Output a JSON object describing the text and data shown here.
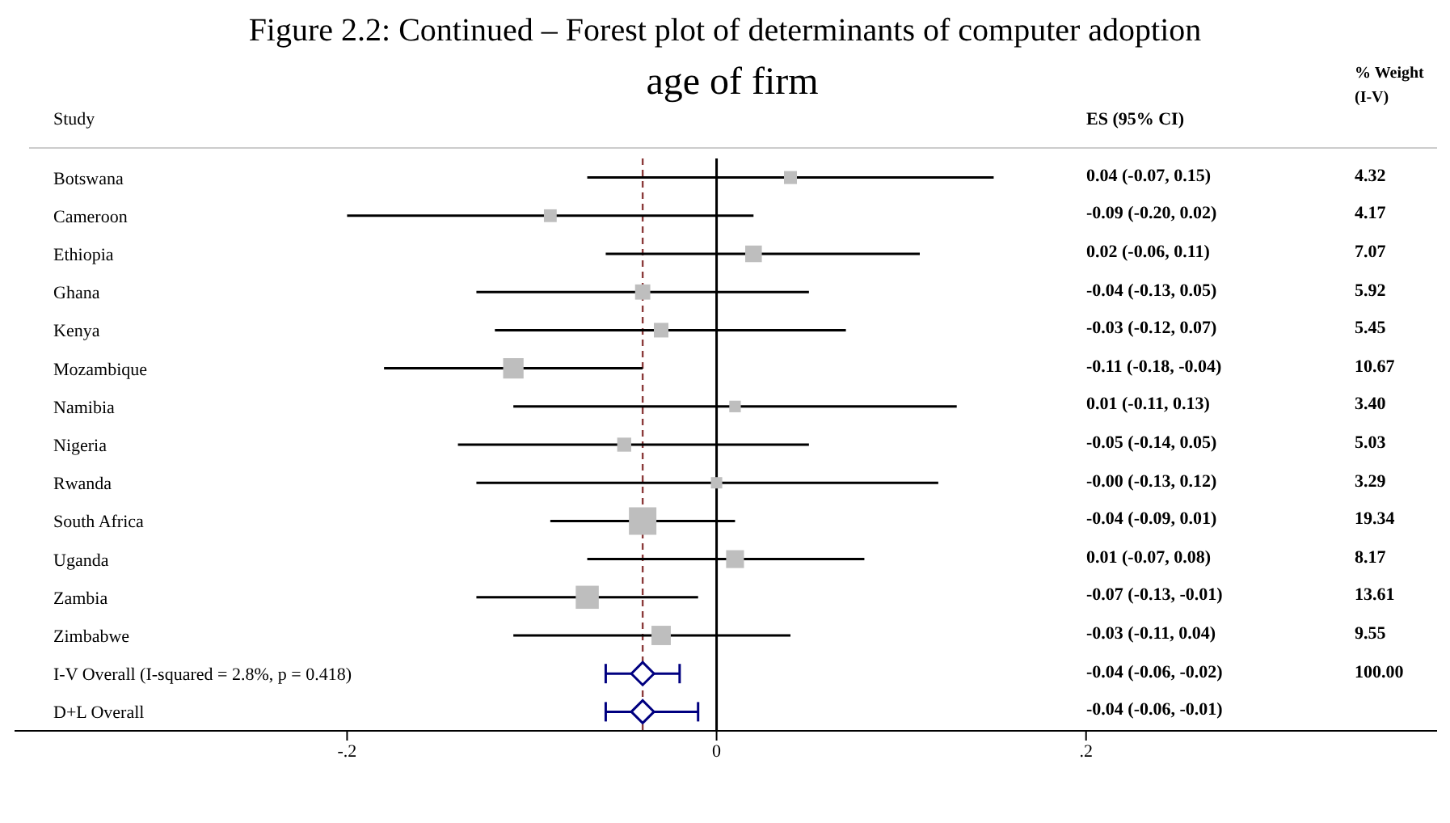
{
  "chart_data": {
    "type": "bubble",
    "title": "Figure 2.2: Continued – Forest plot of determinants of computer adoption",
    "subtitle": "age of firm",
    "ylabel": "Study",
    "orientation": "horizontal",
    "categories": [
      "Botswana",
      "Cameroon",
      "Ethiopia",
      "Ghana",
      "Kenya",
      "Mozambique",
      "Namibia",
      "Nigeria",
      "Rwanda",
      "South Africa",
      "Uganda",
      "Zambia",
      "Zimbabwe",
      "I-V Overall  (I-squared = 2.8%, p = 0.418)",
      "D+L Overall"
    ],
    "series": [
      {
        "type": "bubble",
        "marker": "square",
        "color": "#bebebe",
        "values": [
          0.04,
          -0.09,
          0.02,
          -0.04,
          -0.03,
          -0.11,
          0.01,
          -0.05,
          -0.0,
          -0.04,
          0.01,
          -0.07,
          -0.03,
          null,
          null
        ],
        "errors": [
          [
            -0.07,
            0.15
          ],
          [
            -0.2,
            0.02
          ],
          [
            -0.06,
            0.11
          ],
          [
            -0.13,
            0.05
          ],
          [
            -0.12,
            0.07
          ],
          [
            -0.18,
            -0.04
          ],
          [
            -0.11,
            0.13
          ],
          [
            -0.14,
            0.05
          ],
          [
            -0.13,
            0.12
          ],
          [
            -0.09,
            0.01
          ],
          [
            -0.07,
            0.08
          ],
          [
            -0.13,
            -0.01
          ],
          [
            -0.11,
            0.04
          ],
          null,
          null
        ],
        "sizes": [
          0.223,
          0.216,
          0.366,
          0.306,
          0.282,
          0.552,
          0.176,
          0.26,
          0.17,
          1,
          0.422,
          0.704,
          0.494,
          null,
          null
        ]
      },
      {
        "type": "scatter",
        "marker": "diamond",
        "color": "#000080",
        "values": [
          null,
          null,
          null,
          null,
          null,
          null,
          null,
          null,
          null,
          null,
          null,
          null,
          null,
          -0.04,
          -0.04
        ],
        "errors": [
          null,
          null,
          null,
          null,
          null,
          null,
          null,
          null,
          null,
          null,
          null,
          null,
          null,
          [
            -0.06,
            -0.02
          ],
          [
            -0.06,
            -0.01
          ]
        ]
      }
    ],
    "xlim": [
      -0.38,
      0.39
    ],
    "xticks": [
      {
        "value": -0.2,
        "label": "-.2"
      },
      {
        "value": 0,
        "label": "0"
      },
      {
        "value": 0.2,
        "label": ".2"
      }
    ],
    "ref_lines": [
      {
        "axis": "x",
        "value": 0,
        "color": "#000000",
        "line_style": "solid"
      },
      {
        "axis": "x",
        "value": -0.04,
        "color": "#8b3a3a",
        "line_style": "dashed"
      }
    ],
    "grid": false,
    "annotations": [
      "ES (95% CI)",
      "% Weight (I-V)",
      "0.04 (-0.07, 0.15)",
      "-0.09 (-0.20, 0.02)",
      "0.02 (-0.06, 0.11)",
      "-0.04 (-0.13, 0.05)",
      "-0.03 (-0.12, 0.07)",
      "-0.11 (-0.18, -0.04)",
      "0.01 (-0.11, 0.13)",
      "-0.05 (-0.14, 0.05)",
      "-0.00 (-0.13, 0.12)",
      "-0.04 (-0.09, 0.01)",
      "0.01 (-0.07, 0.08)",
      "-0.07 (-0.13, -0.01)",
      "-0.03 (-0.11, 0.04)",
      "-0.04 (-0.06, -0.02)",
      "-0.04 (-0.06, -0.01)",
      "4.32",
      "4.17",
      "7.07",
      "5.92",
      "5.45",
      "10.67",
      "3.40",
      "5.03",
      "3.29",
      "19.34",
      "8.17",
      "13.61",
      "9.55",
      "100.00"
    ]
  }
}
